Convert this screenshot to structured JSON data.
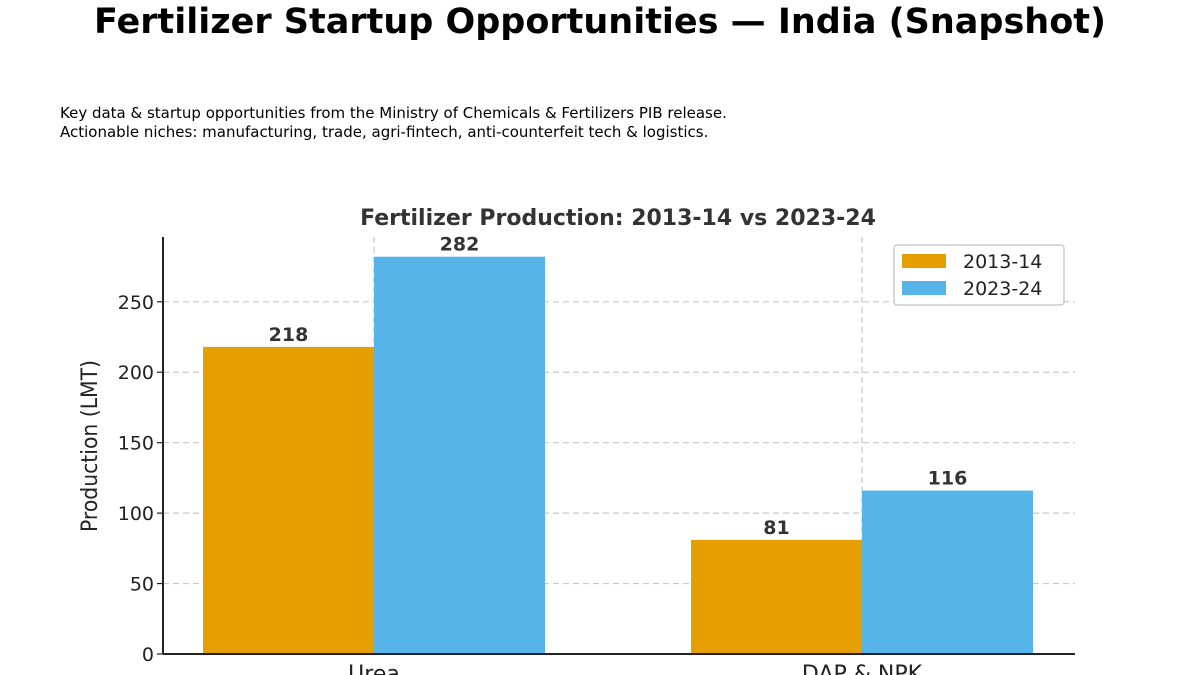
{
  "page": {
    "title": "Fertilizer Startup Opportunities — India (Snapshot)",
    "subtitle_lines": [
      "Key data & startup opportunities from the Ministry of Chemicals & Fertilizers PIB release.",
      "Actionable niches: manufacturing, trade, agri-fintech, anti-counterfeit tech & logistics."
    ]
  },
  "chart_data": {
    "type": "bar",
    "title": "Fertilizer Production: 2013-14 vs 2023-24",
    "xlabel": "",
    "ylabel": "Production (LMT)",
    "categories": [
      "Urea",
      "DAP & NPK"
    ],
    "series": [
      {
        "name": "2013-14",
        "values": [
          218,
          81
        ],
        "color": "#E69F00"
      },
      {
        "name": "2023-24",
        "values": [
          282,
          116
        ],
        "color": "#56B4E9"
      }
    ],
    "ylim": [
      0,
      296
    ],
    "yticks": [
      0,
      50,
      100,
      150,
      200,
      250
    ],
    "grid": true,
    "legend_position": "top-right"
  }
}
